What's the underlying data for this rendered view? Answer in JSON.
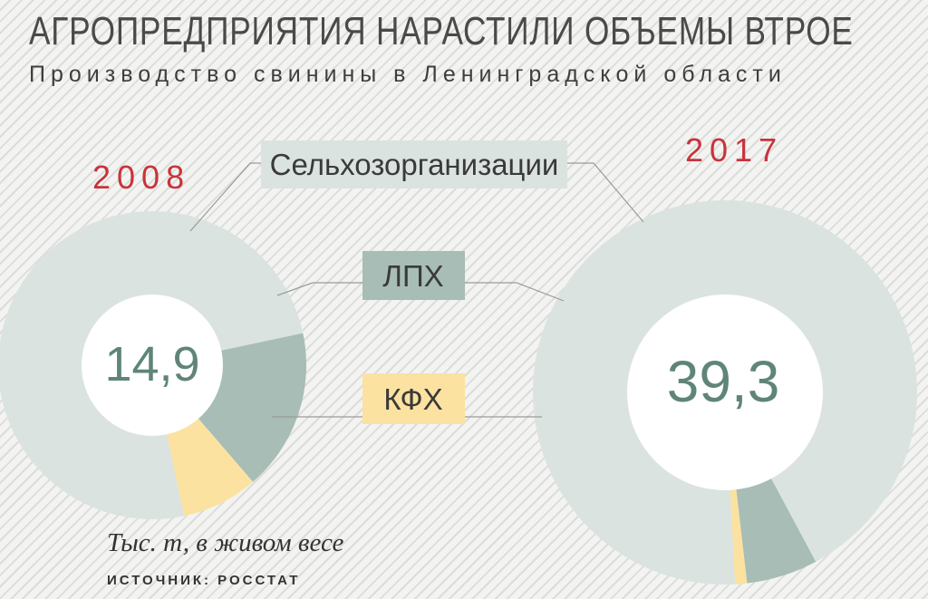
{
  "title": "АГРОПРЕДПРИЯТИЯ НАРАСТИЛИ ОБЪЕМЫ ВТРОЕ",
  "subtitle": "Производство свинины в Ленинградской области",
  "unit_note": "Тыс. т, в живом весе",
  "source": "ИСТОЧНИК: РОССТАТ",
  "chart_data": {
    "type": "pie",
    "categories": [
      "Сельхозорганизации",
      "ЛПХ",
      "КФХ"
    ],
    "colors": [
      "#dbe3e0",
      "#a7bdb5",
      "#fbe2a0"
    ],
    "series": [
      {
        "name": "2008",
        "total": "14,9",
        "values": [
          0.75,
          0.17,
          0.08
        ]
      },
      {
        "name": "2017",
        "total": "39,3",
        "values": [
          0.93,
          0.06,
          0.01
        ]
      }
    ]
  }
}
